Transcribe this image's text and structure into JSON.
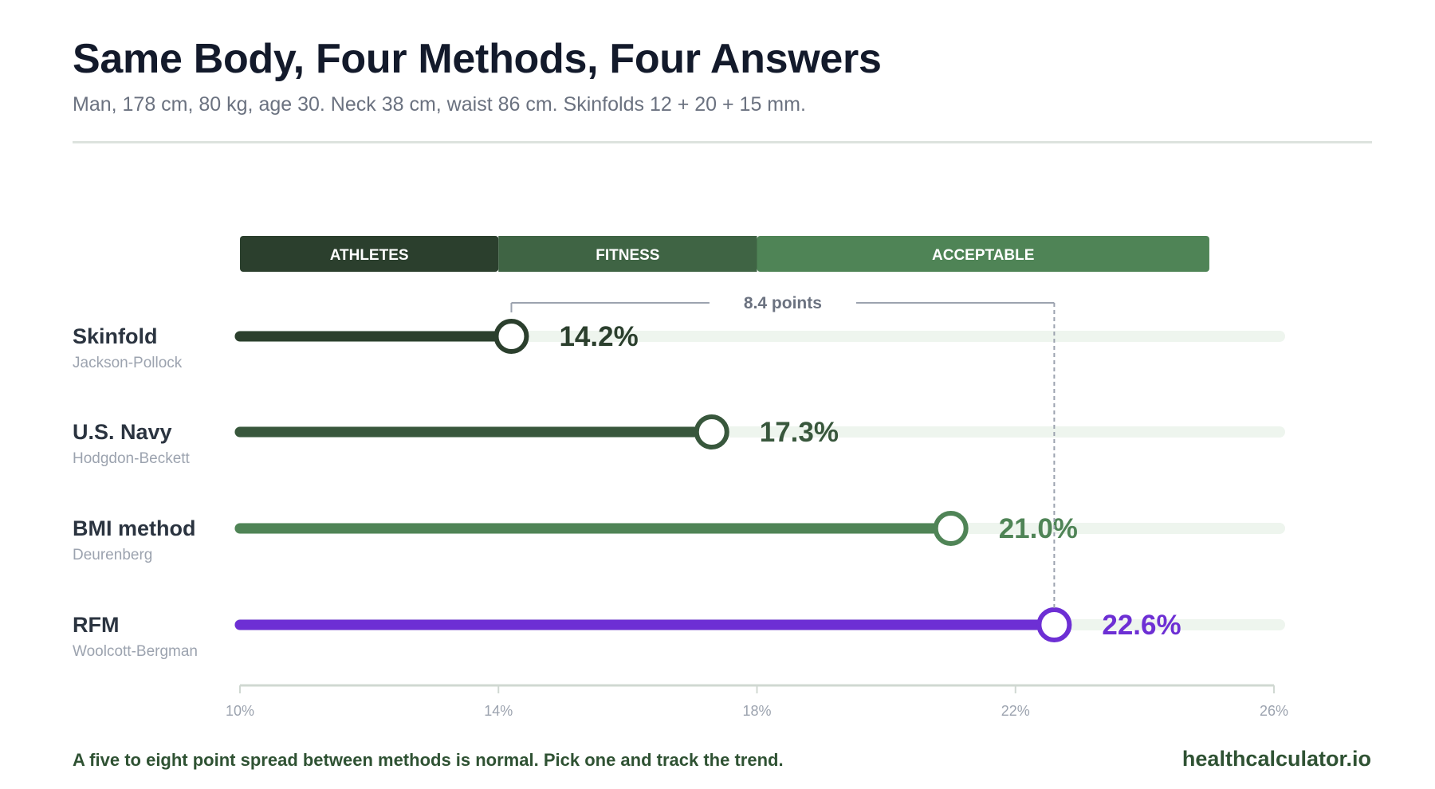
{
  "header": {
    "title": "Same Body, Four Methods, Four Answers",
    "subtitle": "Man, 178 cm, 80 kg, age 30. Neck 38 cm, waist 86 cm. Skinfolds 12 + 20 + 15 mm."
  },
  "footer": {
    "note": "A five to eight point spread between methods is normal. Pick one and track the trend.",
    "brand": "healthcalculator.io"
  },
  "chart_data": {
    "type": "bar",
    "orientation": "horizontal",
    "xlim": [
      10,
      26
    ],
    "x_ticks": [
      10,
      14,
      18,
      22,
      26
    ],
    "x_tick_labels": [
      "10%",
      "14%",
      "18%",
      "22%",
      "26%"
    ],
    "bands": [
      {
        "label": "ATHLETES",
        "from": 10,
        "to": 14,
        "color": "#2b3f2d"
      },
      {
        "label": "FITNESS",
        "from": 14,
        "to": 18,
        "color": "#3f6444"
      },
      {
        "label": "ACCEPTABLE",
        "from": 18,
        "to": 25,
        "color": "#4f8456"
      }
    ],
    "series": [
      {
        "name": "Skinfold",
        "method": "Jackson-Pollock",
        "value": 14.2,
        "label": "14.2%",
        "color": "#2b3f2d"
      },
      {
        "name": "U.S. Navy",
        "method": "Hodgdon-Beckett",
        "value": 17.3,
        "label": "17.3%",
        "color": "#38573c"
      },
      {
        "name": "BMI method",
        "method": "Deurenberg",
        "value": 21.0,
        "label": "21.0%",
        "color": "#4f8456"
      },
      {
        "name": "RFM",
        "method": "Woolcott-Bergman",
        "value": 22.6,
        "label": "22.6%",
        "color": "#6d2fd4"
      }
    ],
    "annotation": {
      "label": "8.4 points",
      "from": 14.2,
      "to": 22.6,
      "color": "#9ca3af"
    },
    "track_color": "#eef5ee",
    "axis_color": "#d0d8d2",
    "grid": false
  }
}
